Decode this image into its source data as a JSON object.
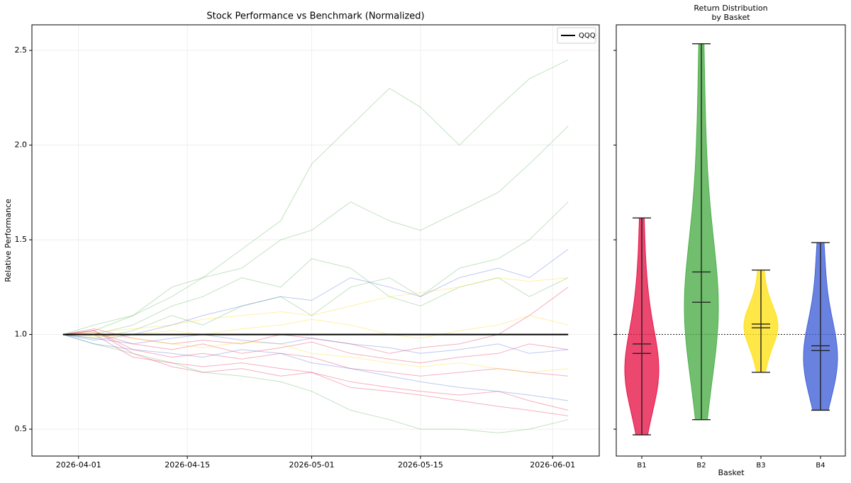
{
  "chart_data": [
    {
      "type": "line",
      "title": "Stock Performance vs Benchmark (Normalized)",
      "ylabel": "Relative Performance",
      "x": [
        "2026-03-30",
        "2026-04-03",
        "2026-04-08",
        "2026-04-13",
        "2026-04-17",
        "2026-04-22",
        "2026-04-27",
        "2026-05-01",
        "2026-05-06",
        "2026-05-11",
        "2026-05-15",
        "2026-05-20",
        "2026-05-25",
        "2026-05-29",
        "2026-06-03"
      ],
      "xlim": [
        "2026-03-26",
        "2026-06-07"
      ],
      "xticks": [
        "2026-04-01",
        "2026-04-15",
        "2026-05-01",
        "2026-05-15",
        "2026-06-01"
      ],
      "ylim": [
        0.358,
        2.635
      ],
      "yticks": [
        0.5,
        {
          "value": 1,
          "label": "1.0"
        },
        1.5,
        {
          "value": 2,
          "label": "2.0"
        },
        2.5
      ],
      "grid": true,
      "legend": "upper right",
      "series": [
        {
          "color": "#4daf4a",
          "values": [
            1,
            1.02,
            1.1,
            1.25,
            1.3,
            1.45,
            1.6,
            1.9,
            2.1,
            2.3,
            2.2,
            2.0,
            2.2,
            2.35,
            2.45
          ]
        },
        {
          "color": "#4daf4a",
          "values": [
            1,
            1.05,
            1.1,
            1.2,
            1.3,
            1.35,
            1.5,
            1.55,
            1.7,
            1.6,
            1.55,
            1.65,
            1.75,
            1.9,
            2.1
          ]
        },
        {
          "color": "#4daf4a",
          "values": [
            1,
            0.98,
            1.02,
            1.1,
            1.05,
            1.15,
            1.2,
            1.1,
            1.25,
            1.3,
            1.2,
            1.35,
            1.4,
            1.5,
            1.7
          ]
        },
        {
          "color": "#4daf4a",
          "values": [
            1,
            0.95,
            0.9,
            0.85,
            0.8,
            0.78,
            0.75,
            0.7,
            0.6,
            0.55,
            0.5,
            0.5,
            0.48,
            0.5,
            0.55
          ]
        },
        {
          "color": "#4daf4a",
          "values": [
            1,
            1.0,
            1.05,
            1.15,
            1.2,
            1.3,
            1.25,
            1.4,
            1.35,
            1.2,
            1.15,
            1.25,
            1.3,
            1.2,
            1.3
          ]
        },
        {
          "color": "#e6194b",
          "values": [
            1,
            1.02,
            0.92,
            0.88,
            0.9,
            0.87,
            0.9,
            0.88,
            0.82,
            0.8,
            0.78,
            0.8,
            0.82,
            0.8,
            0.78
          ]
        },
        {
          "color": "#e6194b",
          "values": [
            1,
            1.0,
            0.88,
            0.85,
            0.83,
            0.85,
            0.82,
            0.8,
            0.75,
            0.72,
            0.7,
            0.68,
            0.7,
            0.65,
            0.6
          ]
        },
        {
          "color": "#e6194b",
          "values": [
            1,
            1.03,
            0.98,
            0.95,
            0.97,
            0.95,
            1.0,
            0.98,
            0.95,
            0.9,
            0.93,
            0.95,
            1.0,
            1.1,
            1.25
          ]
        },
        {
          "color": "#e6194b",
          "values": [
            1,
            1.01,
            0.95,
            0.92,
            0.95,
            0.9,
            0.93,
            0.96,
            0.9,
            0.87,
            0.85,
            0.88,
            0.9,
            0.95,
            0.92
          ]
        },
        {
          "color": "#e6194b",
          "values": [
            1,
            1.02,
            0.9,
            0.83,
            0.8,
            0.82,
            0.78,
            0.8,
            0.72,
            0.7,
            0.68,
            0.65,
            0.62,
            0.6,
            0.57
          ]
        },
        {
          "color": "#ffd700",
          "values": [
            1,
            1.01,
            1.03,
            1.05,
            1.08,
            1.1,
            1.12,
            1.1,
            1.15,
            1.2,
            1.22,
            1.25,
            1.3,
            1.28,
            1.3
          ]
        },
        {
          "color": "#ffd700",
          "values": [
            1,
            0.99,
            1.0,
            1.02,
            1.0,
            1.03,
            1.05,
            1.08,
            1.05,
            1.0,
            0.98,
            1.02,
            1.05,
            1.1,
            1.05
          ]
        },
        {
          "color": "#ffd700",
          "values": [
            1,
            1.0,
            0.98,
            0.95,
            0.93,
            0.96,
            0.95,
            0.9,
            0.88,
            0.85,
            0.83,
            0.85,
            0.82,
            0.8,
            0.82
          ]
        },
        {
          "color": "#4363d8",
          "values": [
            1,
            0.97,
            1.0,
            1.05,
            1.1,
            1.15,
            1.2,
            1.18,
            1.3,
            1.25,
            1.2,
            1.3,
            1.35,
            1.3,
            1.45
          ]
        },
        {
          "color": "#4363d8",
          "values": [
            1,
            0.95,
            0.92,
            0.9,
            0.88,
            0.92,
            0.9,
            0.85,
            0.82,
            0.78,
            0.75,
            0.72,
            0.7,
            0.68,
            0.65
          ]
        },
        {
          "color": "#4363d8",
          "values": [
            1,
            0.98,
            0.95,
            0.98,
            1.0,
            0.97,
            0.95,
            0.98,
            0.95,
            0.93,
            0.9,
            0.92,
            0.95,
            0.9,
            0.92
          ]
        },
        {
          "name": "QQQ",
          "color": "#000000",
          "values": [
            1,
            1,
            1,
            1,
            1,
            1,
            1,
            1,
            1,
            1,
            1,
            1,
            1,
            1,
            1
          ]
        }
      ]
    },
    {
      "type": "violin",
      "title": "Return Distribution\nby Basket",
      "xlabel": "Basket",
      "categories": [
        "B1",
        "B2",
        "B3",
        "B4"
      ],
      "colors": [
        "#e6194b",
        "#4daf4a",
        "#ffe119",
        "#4363d8"
      ],
      "ylim": [
        0.358,
        2.635
      ],
      "yticks": [
        0.5,
        1,
        1.5,
        2,
        2.5
      ],
      "reference_line": 1,
      "samples": [
        [
          0.47,
          0.6,
          0.68,
          0.72,
          0.75,
          0.78,
          0.8,
          0.83,
          0.86,
          0.9,
          0.95,
          1.0,
          1.1,
          1.2,
          1.35,
          1.615
        ],
        [
          0.55,
          0.8,
          0.95,
          1.0,
          1.05,
          1.1,
          1.15,
          1.2,
          1.25,
          1.3,
          1.45,
          1.6,
          1.8,
          2.1,
          2.535
        ],
        [
          0.8,
          0.9,
          0.95,
          1.0,
          1.02,
          1.04,
          1.05,
          1.07,
          1.1,
          1.15,
          1.2,
          1.34
        ],
        [
          0.6,
          0.7,
          0.75,
          0.8,
          0.85,
          0.88,
          0.9,
          0.95,
          1.0,
          1.05,
          1.15,
          1.3,
          1.485
        ]
      ],
      "min": [
        0.47,
        0.55,
        0.8,
        0.6
      ],
      "max": [
        1.615,
        2.535,
        1.34,
        1.485
      ],
      "mean": [
        0.95,
        1.33,
        1.055,
        0.94
      ],
      "median": [
        0.9,
        1.17,
        1.035,
        0.915
      ]
    }
  ]
}
